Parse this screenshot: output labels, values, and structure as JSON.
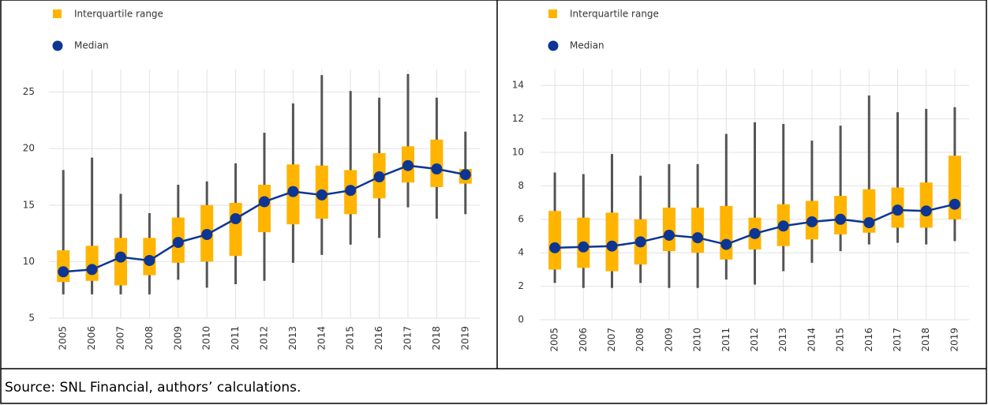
{
  "chart_data": [
    {
      "type": "box",
      "categories": [
        "2005",
        "2006",
        "2007",
        "2008",
        "2009",
        "2010",
        "2011",
        "2012",
        "2013",
        "2014",
        "2015",
        "2016",
        "2017",
        "2018",
        "2019"
      ],
      "iqr": {
        "name": "Interquartile range",
        "color": "#ffb400",
        "q1": [
          8.2,
          8.3,
          7.9,
          8.8,
          9.9,
          10.0,
          10.5,
          12.6,
          13.3,
          13.8,
          14.2,
          15.6,
          17.0,
          16.6,
          16.9
        ],
        "q3": [
          11.0,
          11.4,
          12.1,
          12.1,
          13.9,
          15.0,
          15.2,
          16.8,
          18.6,
          18.5,
          18.1,
          19.6,
          20.2,
          20.8,
          18.2
        ]
      },
      "median": {
        "name": "Median",
        "color": "#0d3692",
        "values": [
          9.1,
          9.3,
          10.4,
          10.1,
          11.7,
          12.4,
          13.8,
          15.3,
          16.2,
          15.9,
          16.3,
          17.5,
          18.5,
          18.2,
          17.7
        ]
      },
      "whiskers": {
        "color": "#555555",
        "low": [
          7.1,
          7.1,
          7.1,
          7.1,
          8.4,
          7.7,
          8.0,
          8.3,
          9.9,
          10.6,
          11.5,
          12.1,
          14.8,
          13.8,
          14.2
        ],
        "high": [
          18.1,
          19.2,
          16.0,
          14.3,
          16.8,
          17.1,
          18.7,
          21.4,
          24.0,
          26.5,
          25.1,
          24.5,
          26.6,
          24.5,
          21.5
        ]
      },
      "ylim": [
        5,
        27
      ],
      "yticks": [
        5,
        10,
        15,
        20,
        25
      ],
      "grid": true
    },
    {
      "type": "box",
      "categories": [
        "2005",
        "2006",
        "2007",
        "2008",
        "2009",
        "2010",
        "2011",
        "2012",
        "2013",
        "2014",
        "2015",
        "2016",
        "2017",
        "2018",
        "2019"
      ],
      "iqr": {
        "name": "Interquartile range",
        "color": "#ffb400",
        "q1": [
          3.0,
          3.1,
          2.9,
          3.3,
          4.1,
          4.0,
          3.6,
          4.2,
          4.4,
          4.8,
          5.1,
          5.2,
          5.5,
          5.5,
          6.0
        ],
        "q3": [
          6.5,
          6.1,
          6.4,
          6.0,
          6.7,
          6.7,
          6.8,
          6.1,
          6.9,
          7.1,
          7.4,
          7.8,
          7.9,
          8.2,
          9.8
        ]
      },
      "median": {
        "name": "Median",
        "color": "#0d3692",
        "values": [
          4.3,
          4.35,
          4.4,
          4.65,
          5.05,
          4.9,
          4.5,
          5.15,
          5.6,
          5.85,
          6.0,
          5.8,
          6.55,
          6.5,
          6.9
        ]
      },
      "whiskers": {
        "color": "#555555",
        "low": [
          2.2,
          1.9,
          1.9,
          2.2,
          1.9,
          1.9,
          2.4,
          2.1,
          2.9,
          3.4,
          4.1,
          4.5,
          4.6,
          4.5,
          4.7
        ],
        "high": [
          8.8,
          8.7,
          9.9,
          8.6,
          9.3,
          9.3,
          11.1,
          11.8,
          11.7,
          10.7,
          11.6,
          13.4,
          12.4,
          12.6,
          12.7
        ]
      },
      "ylim": [
        0,
        15
      ],
      "yticks": [
        0,
        2,
        4,
        6,
        8,
        10,
        12,
        14
      ],
      "grid": true
    }
  ],
  "source": "Source: SNL Financial, authors’ calculations."
}
